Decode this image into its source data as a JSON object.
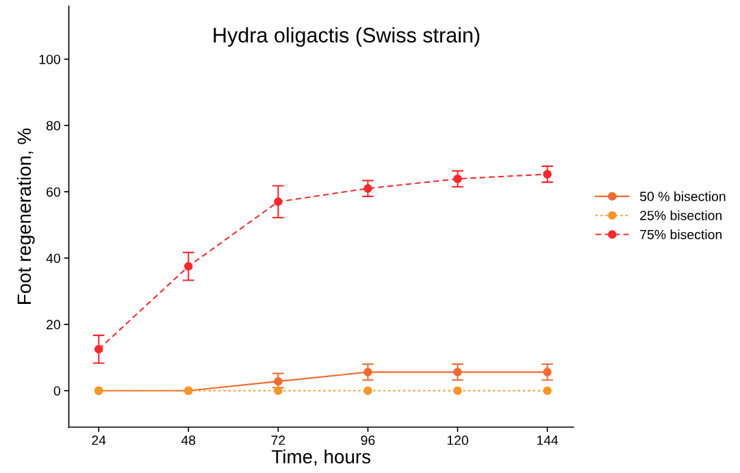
{
  "chart_data": {
    "type": "line",
    "title": "Hydra oligactis (Swiss strain)",
    "xlabel": "Time, hours",
    "ylabel": "Foot regeneration, %",
    "x": [
      24,
      48,
      72,
      96,
      120,
      144
    ],
    "series": [
      {
        "name": "50 % bisection",
        "color": "#f26a30",
        "line_style": "solid",
        "values": [
          0,
          0,
          2.8,
          5.6,
          5.6,
          5.6
        ],
        "errors": [
          null,
          null,
          [
            0.9,
            5.2
          ],
          [
            3.2,
            8.0
          ],
          [
            3.2,
            8.0
          ],
          [
            3.2,
            8.0
          ]
        ]
      },
      {
        "name": "25% bisection",
        "color": "#f8962a",
        "line_style": "dotted",
        "values": [
          0,
          0,
          0,
          0,
          0,
          0
        ]
      },
      {
        "name": "75% bisection",
        "color": "#f42a2e",
        "line_style": "dashed",
        "values": [
          12.5,
          37.5,
          57.0,
          61.0,
          63.9,
          65.3
        ],
        "errors": [
          [
            8.3,
            16.7
          ],
          [
            33.3,
            41.7
          ],
          [
            52.2,
            61.8
          ],
          [
            58.6,
            63.4
          ],
          [
            61.5,
            66.3
          ],
          [
            62.9,
            67.7
          ]
        ]
      }
    ],
    "xlim": [
      16,
      151
    ],
    "ylim": [
      -11,
      116
    ],
    "xticks": [
      24,
      48,
      72,
      96,
      120,
      144
    ],
    "yticks": [
      0,
      20,
      40,
      60,
      80,
      100
    ],
    "marker": "circle",
    "grid": false,
    "legend": "right"
  }
}
